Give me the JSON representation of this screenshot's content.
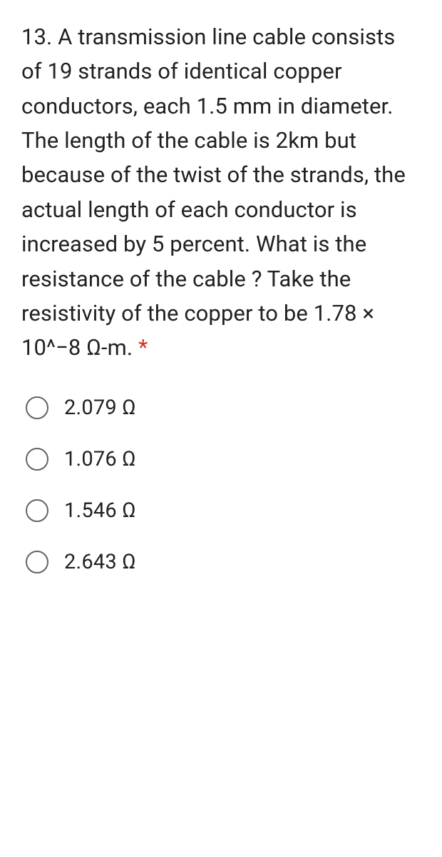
{
  "question": {
    "number": "13.",
    "text": "A transmission line cable consists of 19 strands of identical copper conductors, each 1.5 mm in diameter. The length of the cable is 2km but because of the twist of the strands, the actual length of each conductor is increased by 5 percent. What is the resistance of the cable ? Take the resistivity of the copper to be 1.78 × 10^−8 Ω-m.",
    "required_marker": "*",
    "fontsize": 31,
    "text_color": "#202124",
    "required_color": "#d93025"
  },
  "options": [
    {
      "label": "2.079 Ω"
    },
    {
      "label": "1.076 Ω"
    },
    {
      "label": "1.546 Ω"
    },
    {
      "label": "2.643 Ω"
    }
  ],
  "styling": {
    "background_color": "#ffffff",
    "radio_border_color": "#5f6368",
    "option_fontsize": 29,
    "option_gap": 38,
    "radio_size": 32
  }
}
